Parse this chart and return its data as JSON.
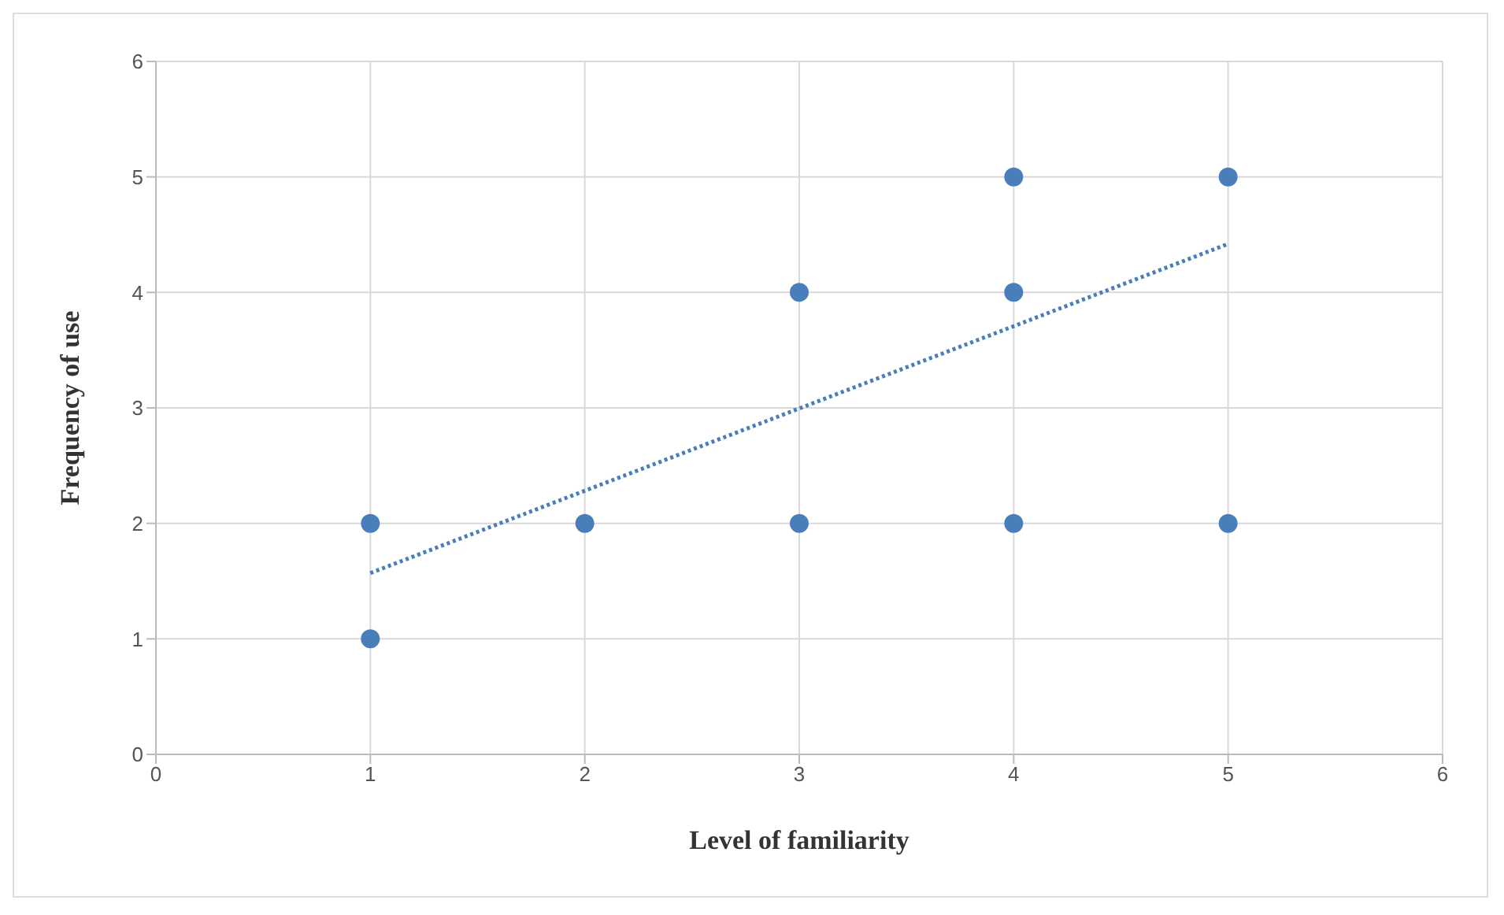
{
  "chart_data": {
    "type": "scatter",
    "xlabel": "Level of familiarity",
    "ylabel": "Frequency of use",
    "xlim": [
      0,
      6
    ],
    "xticks": [
      0,
      1,
      2,
      3,
      4,
      5,
      6
    ],
    "ylim": [
      0,
      6
    ],
    "yticks": [
      0,
      1,
      2,
      3,
      4,
      5,
      6
    ],
    "grid": true,
    "marker": "circle",
    "series": [
      {
        "color": "#4a7ebb",
        "x": [
          1,
          1,
          2,
          3,
          3,
          4,
          4,
          4,
          5,
          5
        ],
        "values": [
          2,
          1,
          2,
          4,
          2,
          5,
          4,
          2,
          5,
          2
        ]
      },
      {
        "type": "line",
        "color": "#4a7ebb",
        "line_style": "dotted",
        "marker": "none",
        "x": [
          1,
          5
        ],
        "values": [
          1.57,
          4.42
        ]
      }
    ]
  }
}
